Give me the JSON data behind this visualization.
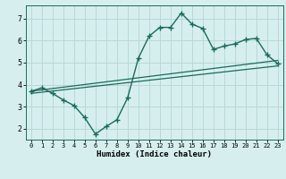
{
  "xlabel": "Humidex (Indice chaleur)",
  "background_color": "#d6efee",
  "grid_color": "#b8d8d6",
  "line_color": "#1a6b5a",
  "curve_x": [
    0,
    1,
    2,
    3,
    4,
    5,
    6,
    7,
    8,
    9,
    10,
    11,
    12,
    13,
    14,
    15,
    16,
    17,
    18,
    19,
    20,
    21,
    22,
    23
  ],
  "curve_y": [
    3.7,
    3.85,
    3.6,
    3.3,
    3.05,
    2.5,
    1.75,
    2.1,
    2.4,
    3.4,
    5.2,
    6.2,
    6.6,
    6.6,
    7.25,
    6.75,
    6.55,
    5.6,
    5.75,
    5.85,
    6.05,
    6.1,
    5.35,
    4.95
  ],
  "line1_x": [
    0,
    23
  ],
  "line1_y": [
    3.7,
    5.1
  ],
  "line2_x": [
    0,
    23
  ],
  "line2_y": [
    3.6,
    4.85
  ],
  "xlim": [
    -0.5,
    23.5
  ],
  "ylim": [
    1.5,
    7.6
  ],
  "yticks": [
    2,
    3,
    4,
    5,
    6,
    7
  ],
  "xticks": [
    0,
    1,
    2,
    3,
    4,
    5,
    6,
    7,
    8,
    9,
    10,
    11,
    12,
    13,
    14,
    15,
    16,
    17,
    18,
    19,
    20,
    21,
    22,
    23
  ]
}
